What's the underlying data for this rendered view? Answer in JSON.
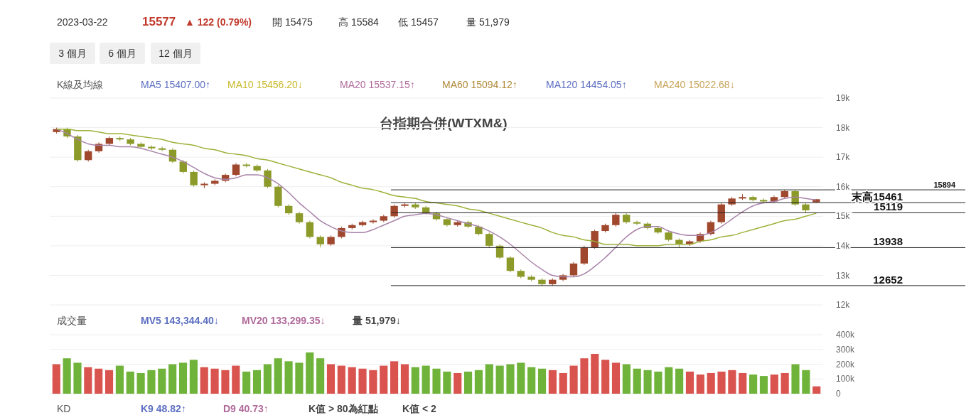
{
  "chart_data": [
    {
      "type": "candlestick",
      "title": "台指期合併(WTXM&)",
      "categories": [
        null,
        null,
        null,
        null,
        null,
        null,
        null,
        null,
        null,
        null,
        null,
        null,
        null,
        null,
        null,
        null,
        null,
        null,
        null,
        null,
        null,
        null,
        null,
        null,
        null,
        null,
        null,
        null,
        null,
        null,
        null,
        null,
        null,
        null,
        null,
        null,
        null,
        null,
        null,
        null,
        null,
        null,
        null,
        null,
        null,
        null,
        null,
        null,
        null,
        null,
        null,
        null,
        null,
        null,
        null,
        null,
        null,
        null,
        null,
        null,
        null,
        null,
        null,
        null,
        null,
        null,
        null,
        null,
        null,
        null,
        null,
        null,
        null
      ],
      "ohlc": [
        [
          17850,
          18000,
          17800,
          17950
        ],
        [
          17950,
          18000,
          17650,
          17700
        ],
        [
          17700,
          17750,
          16850,
          16900
        ],
        [
          16900,
          17250,
          16850,
          17200
        ],
        [
          17200,
          17500,
          17150,
          17450
        ],
        [
          17450,
          17700,
          17400,
          17650
        ],
        [
          17650,
          17700,
          17550,
          17600
        ],
        [
          17600,
          17650,
          17400,
          17450
        ],
        [
          17450,
          17500,
          17300,
          17350
        ],
        [
          17350,
          17400,
          17250,
          17300
        ],
        [
          17300,
          17350,
          17200,
          17250
        ],
        [
          17250,
          17300,
          16800,
          16850
        ],
        [
          16850,
          16900,
          16450,
          16500
        ],
        [
          16500,
          16550,
          16000,
          16050
        ],
        [
          16050,
          16150,
          15950,
          16100
        ],
        [
          16100,
          16250,
          16050,
          16200
        ],
        [
          16200,
          16450,
          16150,
          16400
        ],
        [
          16400,
          16800,
          16350,
          16750
        ],
        [
          16750,
          16800,
          16650,
          16700
        ],
        [
          16700,
          16750,
          16500,
          16550
        ],
        [
          16550,
          16600,
          15950,
          16000
        ],
        [
          16000,
          16050,
          15300,
          15350
        ],
        [
          15350,
          15400,
          15050,
          15100
        ],
        [
          15100,
          15150,
          14750,
          14800
        ],
        [
          14800,
          14850,
          14250,
          14300
        ],
        [
          14300,
          14350,
          13950,
          14050
        ],
        [
          14050,
          14350,
          14000,
          14300
        ],
        [
          14300,
          14650,
          14250,
          14600
        ],
        [
          14600,
          14750,
          14550,
          14700
        ],
        [
          14700,
          14850,
          14650,
          14800
        ],
        [
          14800,
          14900,
          14750,
          14850
        ],
        [
          14850,
          15050,
          14800,
          15000
        ],
        [
          15000,
          15400,
          14950,
          15350
        ],
        [
          15350,
          15450,
          15300,
          15400
        ],
        [
          15400,
          15450,
          15250,
          15300
        ],
        [
          15300,
          15350,
          15050,
          15100
        ],
        [
          15100,
          15150,
          14850,
          14900
        ],
        [
          14900,
          14950,
          14650,
          14700
        ],
        [
          14700,
          14850,
          14650,
          14800
        ],
        [
          14800,
          14850,
          14600,
          14650
        ],
        [
          14650,
          14700,
          14350,
          14400
        ],
        [
          14400,
          14450,
          13950,
          14000
        ],
        [
          14000,
          14050,
          13550,
          13600
        ],
        [
          13600,
          13650,
          13100,
          13150
        ],
        [
          13150,
          13200,
          12900,
          12950
        ],
        [
          12950,
          13000,
          12800,
          12850
        ],
        [
          12850,
          12900,
          12652,
          12700
        ],
        [
          12700,
          12900,
          12652,
          12850
        ],
        [
          12850,
          13050,
          12800,
          13000
        ],
        [
          13000,
          13450,
          12950,
          13400
        ],
        [
          13400,
          14000,
          13350,
          13950
        ],
        [
          13950,
          14550,
          13900,
          14500
        ],
        [
          14500,
          14750,
          14450,
          14700
        ],
        [
          14700,
          15119,
          14650,
          15050
        ],
        [
          15050,
          15100,
          14750,
          14800
        ],
        [
          14800,
          14850,
          14700,
          14750
        ],
        [
          14750,
          14800,
          14550,
          14600
        ],
        [
          14600,
          14650,
          14400,
          14450
        ],
        [
          14450,
          14500,
          14150,
          14200
        ],
        [
          14200,
          14250,
          13938,
          14050
        ],
        [
          14050,
          14200,
          14000,
          14150
        ],
        [
          14150,
          14450,
          14100,
          14400
        ],
        [
          14400,
          14850,
          14350,
          14800
        ],
        [
          14800,
          15450,
          14750,
          15400
        ],
        [
          15400,
          15650,
          15350,
          15600
        ],
        [
          15600,
          15750,
          15550,
          15650
        ],
        [
          15650,
          15700,
          15500,
          15550
        ],
        [
          15550,
          15600,
          15450,
          15500
        ],
        [
          15500,
          15700,
          15450,
          15650
        ],
        [
          15650,
          15894,
          15600,
          15850
        ],
        [
          15850,
          15900,
          15350,
          15400
        ],
        [
          15400,
          15450,
          15119,
          15200
        ],
        [
          15475,
          15584,
          15457,
          15577
        ]
      ],
      "series": [
        {
          "type": "line",
          "color": "#a983a9",
          "values": [
            17950,
            17800,
            17600,
            17450,
            17400,
            17400,
            17350,
            17350,
            17300,
            17200,
            17100,
            17000,
            16850,
            16650,
            16450,
            16300,
            16250,
            16300,
            16400,
            16400,
            16300,
            16100,
            15800,
            15450,
            15150,
            14850,
            14650,
            14500,
            14450,
            14450,
            14550,
            14700,
            14850,
            15000,
            15050,
            15100,
            15050,
            14950,
            14850,
            14750,
            14650,
            14500,
            14300,
            14050,
            13750,
            13450,
            13200,
            13000,
            12950,
            12950,
            13050,
            13300,
            13600,
            13950,
            14300,
            14550,
            14650,
            14650,
            14500,
            14400,
            14350,
            14350,
            14450,
            14650,
            14900,
            15150,
            15350,
            15450,
            15500,
            15600,
            15650,
            15600,
            15550
          ]
        },
        {
          "type": "line",
          "color": "#9cb23a",
          "values": [
            17950,
            17950,
            17900,
            17900,
            17850,
            17800,
            17800,
            17750,
            17700,
            17650,
            17600,
            17500,
            17450,
            17400,
            17300,
            17250,
            17150,
            17100,
            17050,
            16950,
            16900,
            16800,
            16700,
            16600,
            16500,
            16400,
            16300,
            16150,
            16050,
            15950,
            15900,
            15800,
            15700,
            15650,
            15600,
            15500,
            15450,
            15400,
            15350,
            15250,
            15200,
            15100,
            15000,
            14900,
            14800,
            14700,
            14600,
            14450,
            14350,
            14300,
            14200,
            14150,
            14050,
            14050,
            14050,
            14000,
            14000,
            14000,
            14050,
            14050,
            14050,
            14150,
            14200,
            14300,
            14350,
            14450,
            14550,
            14650,
            14750,
            14850,
            14900,
            15000,
            15100
          ]
        }
      ],
      "ylim": [
        12000,
        19000
      ],
      "yticks": [
        {
          "value": 12000,
          "label": "12k"
        },
        {
          "value": 13000,
          "label": "13k"
        },
        {
          "value": 14000,
          "label": "14k"
        },
        {
          "value": 15000,
          "label": "15k"
        },
        {
          "value": 16000,
          "label": "16k"
        },
        {
          "value": 17000,
          "label": "17k"
        },
        {
          "value": 18000,
          "label": "18k"
        },
        {
          "value": 19000,
          "label": "19k"
        }
      ],
      "ref_lines": [
        {
          "axis": "y",
          "value": 15894,
          "label": "15894"
        },
        {
          "axis": "y",
          "value": 15461,
          "label": "末高15461"
        },
        {
          "axis": "y",
          "value": 15119,
          "label": "15119"
        },
        {
          "axis": "y",
          "value": 13938,
          "label": "13938"
        },
        {
          "axis": "y",
          "value": 12652,
          "label": "12652"
        }
      ],
      "annotations": [
        "2023-03-22",
        "15577",
        "▲ 122 (0.79%)",
        "開 15475",
        "高 15584",
        "低 15457",
        "量 51,979",
        "3 個月",
        "6 個月",
        "12 個月",
        "K線及均線",
        "MA5 15407.00↑",
        "MA10 15456.20↓",
        "MA20 15537.15↑",
        "MA60 15094.12↑",
        "MA120 14454.05↑",
        "MA240 15022.68↓"
      ],
      "grid": "y",
      "tick_labels": "y"
    },
    {
      "type": "bar",
      "categories": [
        null,
        null,
        null,
        null,
        null,
        null,
        null,
        null,
        null,
        null,
        null,
        null,
        null,
        null,
        null,
        null,
        null,
        null,
        null,
        null,
        null,
        null,
        null,
        null,
        null,
        null,
        null,
        null,
        null,
        null,
        null,
        null,
        null,
        null,
        null,
        null,
        null,
        null,
        null,
        null,
        null,
        null,
        null,
        null,
        null,
        null,
        null,
        null,
        null,
        null,
        null,
        null,
        null,
        null,
        null,
        null,
        null,
        null,
        null,
        null,
        null,
        null,
        null,
        null,
        null,
        null,
        null,
        null,
        null,
        null,
        null,
        null,
        null
      ],
      "values": [
        200000,
        240000,
        210000,
        180000,
        170000,
        160000,
        190000,
        150000,
        140000,
        160000,
        170000,
        200000,
        210000,
        230000,
        180000,
        170000,
        160000,
        190000,
        150000,
        160000,
        200000,
        240000,
        220000,
        210000,
        280000,
        240000,
        200000,
        190000,
        180000,
        170000,
        160000,
        190000,
        220000,
        200000,
        180000,
        190000,
        170000,
        150000,
        140000,
        150000,
        160000,
        200000,
        190000,
        200000,
        210000,
        180000,
        170000,
        160000,
        140000,
        190000,
        240000,
        270000,
        230000,
        210000,
        200000,
        170000,
        160000,
        150000,
        180000,
        170000,
        150000,
        130000,
        140000,
        150000,
        160000,
        140000,
        130000,
        120000,
        130000,
        140000,
        200000,
        160000,
        50000
      ],
      "colors": [
        "#d9534f",
        "#6fb33a",
        "#6fb33a",
        "#d9534f",
        "#d9534f",
        "#d9534f",
        "#6fb33a",
        "#6fb33a",
        "#6fb33a",
        "#6fb33a",
        "#6fb33a",
        "#6fb33a",
        "#6fb33a",
        "#6fb33a",
        "#d9534f",
        "#d9534f",
        "#d9534f",
        "#d9534f",
        "#6fb33a",
        "#6fb33a",
        "#6fb33a",
        "#6fb33a",
        "#6fb33a",
        "#6fb33a",
        "#6fb33a",
        "#6fb33a",
        "#d9534f",
        "#d9534f",
        "#d9534f",
        "#d9534f",
        "#d9534f",
        "#d9534f",
        "#d9534f",
        "#d9534f",
        "#6fb33a",
        "#6fb33a",
        "#6fb33a",
        "#6fb33a",
        "#d9534f",
        "#6fb33a",
        "#6fb33a",
        "#6fb33a",
        "#6fb33a",
        "#6fb33a",
        "#6fb33a",
        "#6fb33a",
        "#6fb33a",
        "#d9534f",
        "#d9534f",
        "#d9534f",
        "#d9534f",
        "#d9534f",
        "#d9534f",
        "#d9534f",
        "#6fb33a",
        "#6fb33a",
        "#6fb33a",
        "#6fb33a",
        "#6fb33a",
        "#6fb33a",
        "#d9534f",
        "#d9534f",
        "#d9534f",
        "#d9534f",
        "#d9534f",
        "#d9534f",
        "#6fb33a",
        "#6fb33a",
        "#d9534f",
        "#d9534f",
        "#6fb33a",
        "#6fb33a",
        "#d9534f"
      ],
      "ylim": [
        0,
        400000
      ],
      "yticks": [
        0,
        {
          "value": 100000,
          "label": "100k"
        },
        {
          "value": 200000,
          "label": "200k"
        },
        {
          "value": 300000,
          "label": "300k"
        },
        {
          "value": 400000,
          "label": "400k"
        }
      ],
      "annotations": [
        "成交量",
        "MV5 143,344.40↓",
        "MV20 133,299.35↓",
        "量 51,979↓",
        "KD",
        "K9 48.82↑",
        "D9 40.73↑",
        "K值 > 80為紅點",
        "K值 < 2"
      ],
      "grid": "y",
      "tick_labels": "y"
    }
  ]
}
